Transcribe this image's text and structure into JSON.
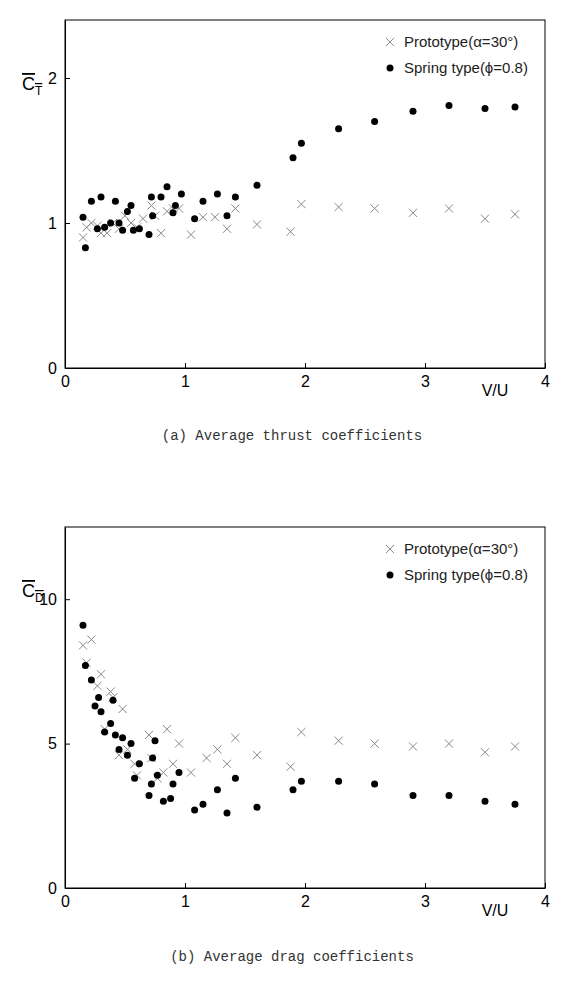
{
  "chart_data": [
    {
      "type": "scatter",
      "title": "(a) Average thrust coefficients",
      "xlabel": "V/U",
      "ylabel": "CT",
      "xlim": [
        0,
        4
      ],
      "ylim": [
        0,
        2.4
      ],
      "xticks": [
        0,
        1,
        2,
        3,
        4
      ],
      "yticks": [
        0,
        1,
        2
      ],
      "grid": false,
      "legend": "upper right",
      "series": [
        {
          "name": "Prototype(α=30°)",
          "color": "#888888",
          "marker": "x",
          "x": [
            0.15,
            0.18,
            0.22,
            0.27,
            0.3,
            0.35,
            0.4,
            0.45,
            0.5,
            0.55,
            0.6,
            0.65,
            0.72,
            0.75,
            0.8,
            0.85,
            0.9,
            0.95,
            1.05,
            1.15,
            1.25,
            1.35,
            1.42,
            1.6,
            1.88,
            1.97,
            2.28,
            2.58,
            2.9,
            3.2,
            3.5,
            3.75
          ],
          "values": [
            0.9,
            0.97,
            1.0,
            0.98,
            0.93,
            0.93,
            1.0,
            0.96,
            1.05,
            1.0,
            0.97,
            1.03,
            1.12,
            1.05,
            0.93,
            1.08,
            1.1,
            1.1,
            0.92,
            1.04,
            1.04,
            0.96,
            1.1,
            0.99,
            0.94,
            1.13,
            1.11,
            1.1,
            1.07,
            1.1,
            1.03,
            1.06
          ]
        },
        {
          "name": "Spring type(ϕ=0.8)",
          "color": "#000000",
          "marker": "circle",
          "x": [
            0.15,
            0.17,
            0.22,
            0.27,
            0.3,
            0.33,
            0.38,
            0.42,
            0.45,
            0.48,
            0.52,
            0.55,
            0.57,
            0.62,
            0.7,
            0.72,
            0.73,
            0.8,
            0.85,
            0.9,
            0.92,
            0.97,
            1.08,
            1.15,
            1.27,
            1.35,
            1.42,
            1.6,
            1.9,
            1.97,
            2.28,
            2.58,
            2.9,
            3.2,
            3.5,
            3.75
          ],
          "values": [
            1.04,
            0.83,
            1.15,
            0.96,
            1.18,
            0.97,
            1.0,
            1.15,
            1.0,
            0.95,
            1.08,
            1.12,
            0.95,
            0.96,
            0.92,
            1.18,
            1.05,
            1.18,
            1.25,
            1.07,
            1.12,
            1.2,
            1.03,
            1.15,
            1.2,
            1.05,
            1.18,
            1.26,
            1.45,
            1.55,
            1.65,
            1.7,
            1.77,
            1.81,
            1.79,
            1.8
          ]
        }
      ]
    },
    {
      "type": "scatter",
      "title": "(b) Average drag coefficients",
      "xlabel": "V/U",
      "ylabel": "CD",
      "xlim": [
        0,
        4
      ],
      "ylim": [
        0,
        12.5
      ],
      "xticks": [
        0,
        1,
        2,
        3,
        4
      ],
      "yticks": [
        0,
        5,
        10
      ],
      "grid": false,
      "legend": "upper right",
      "series": [
        {
          "name": "Prototype(α=30°)",
          "color": "#888888",
          "marker": "x",
          "x": [
            0.15,
            0.18,
            0.22,
            0.27,
            0.3,
            0.33,
            0.38,
            0.4,
            0.45,
            0.48,
            0.52,
            0.58,
            0.6,
            0.7,
            0.72,
            0.77,
            0.82,
            0.85,
            0.9,
            0.95,
            1.05,
            1.18,
            1.27,
            1.35,
            1.42,
            1.6,
            1.88,
            1.97,
            2.28,
            2.58,
            2.9,
            3.2,
            3.5,
            3.75
          ],
          "values": [
            8.4,
            7.8,
            8.6,
            7.0,
            7.4,
            5.5,
            6.8,
            6.6,
            4.6,
            6.2,
            4.8,
            4.3,
            3.9,
            5.3,
            4.5,
            3.8,
            4.0,
            5.5,
            4.3,
            5.0,
            4.0,
            4.5,
            4.8,
            4.3,
            5.2,
            4.6,
            4.2,
            5.4,
            5.1,
            5.0,
            4.9,
            5.0,
            4.7,
            4.9
          ]
        },
        {
          "name": "Spring type(ϕ=0.8)",
          "color": "#000000",
          "marker": "circle",
          "x": [
            0.15,
            0.17,
            0.22,
            0.25,
            0.28,
            0.3,
            0.33,
            0.38,
            0.4,
            0.42,
            0.45,
            0.48,
            0.52,
            0.55,
            0.58,
            0.62,
            0.7,
            0.72,
            0.73,
            0.75,
            0.77,
            0.82,
            0.88,
            0.9,
            0.95,
            1.08,
            1.15,
            1.27,
            1.35,
            1.42,
            1.6,
            1.9,
            1.97,
            2.28,
            2.58,
            2.9,
            3.2,
            3.5,
            3.75
          ],
          "values": [
            9.1,
            7.7,
            7.2,
            6.3,
            6.6,
            6.1,
            5.4,
            5.7,
            6.5,
            5.3,
            4.8,
            5.2,
            4.6,
            5.0,
            3.8,
            4.3,
            3.2,
            3.6,
            4.5,
            5.1,
            3.9,
            3.0,
            3.1,
            3.6,
            4.0,
            2.7,
            2.9,
            3.4,
            2.6,
            3.8,
            2.8,
            3.4,
            3.7,
            3.7,
            3.6,
            3.2,
            3.2,
            3.0,
            2.9
          ]
        }
      ]
    }
  ]
}
